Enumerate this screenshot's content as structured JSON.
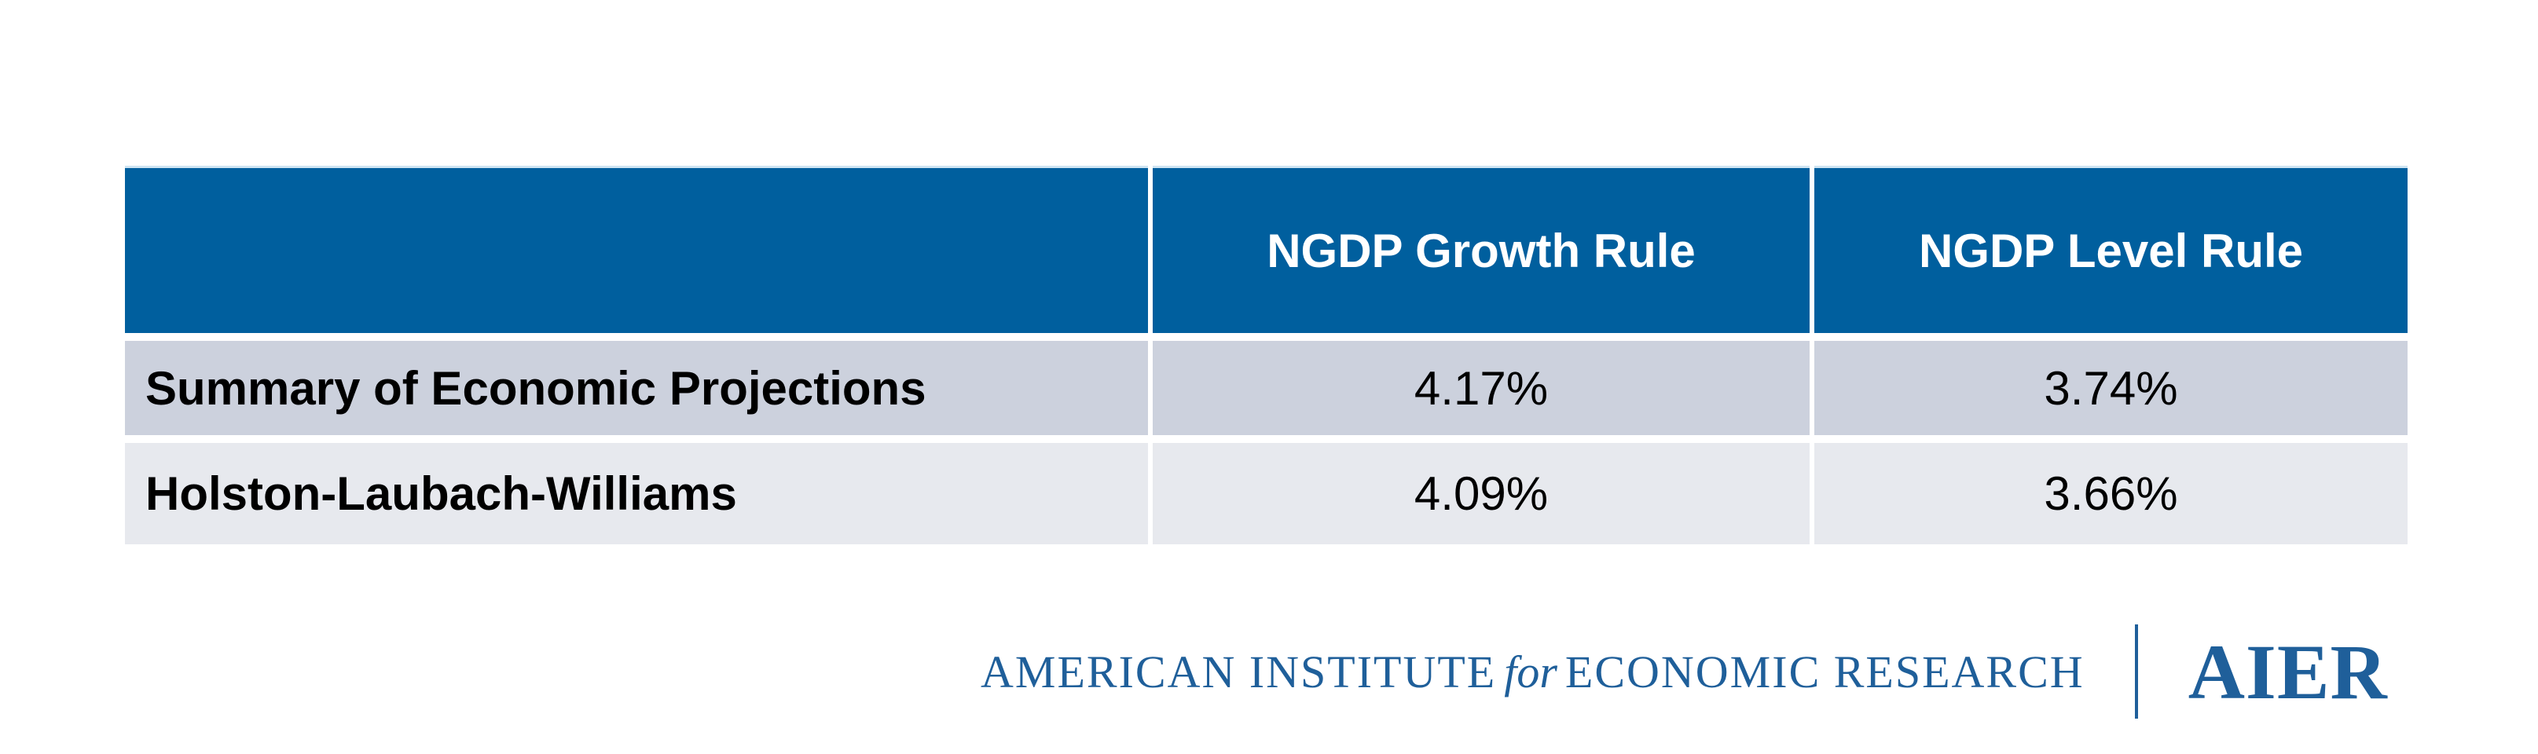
{
  "table": {
    "columns": [
      {
        "label": ""
      },
      {
        "label": "NGDP Growth Rule"
      },
      {
        "label": "NGDP Level Rule"
      }
    ],
    "rows": [
      {
        "label": "Summary of Economic Projections",
        "values": [
          "4.17%",
          "3.74%"
        ]
      },
      {
        "label": "Holston-Laubach-Williams",
        "values": [
          "4.09%",
          "3.66%"
        ]
      }
    ]
  },
  "chart_data": {
    "type": "table",
    "title": "",
    "columns": [
      "",
      "NGDP Growth Rule",
      "NGDP Level Rule"
    ],
    "rows": [
      [
        "Summary of Economic Projections",
        "4.17%",
        "3.74%"
      ],
      [
        "Holston-Laubach-Williams",
        "4.09%",
        "3.66%"
      ]
    ],
    "series": [
      {
        "name": "NGDP Growth Rule",
        "values": [
          4.17,
          4.09
        ]
      },
      {
        "name": "NGDP Level Rule",
        "values": [
          3.74,
          3.66
        ]
      }
    ],
    "categories": [
      "Summary of Economic Projections",
      "Holston-Laubach-Williams"
    ],
    "unit": "percent"
  },
  "footer": {
    "name_left": "AMERICAN INSTITUTE",
    "name_for": "for",
    "name_right": "ECONOMIC RESEARCH",
    "acronym": "AIER"
  },
  "colors": {
    "header_blue": "#005f9e",
    "row1_background": "#ccd1dd",
    "row2_background": "#e7e9ee",
    "logo_blue": "#1f5f9a",
    "header_top_line": "#cfe4f2",
    "text_black": "#000000",
    "header_text_white": "#ffffff"
  }
}
